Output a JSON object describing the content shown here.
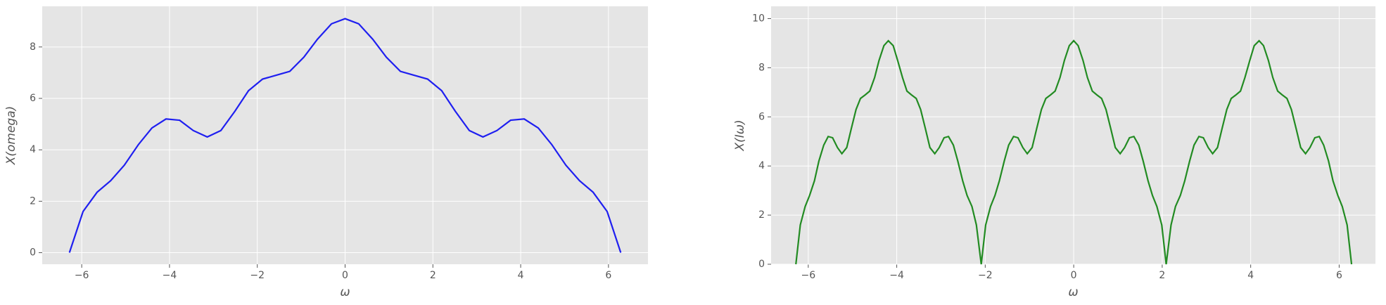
{
  "chart_data": [
    {
      "type": "line",
      "x_label": "ω",
      "y_label": "X(omega)",
      "x": [
        -6.28,
        -5.97,
        -5.65,
        -5.34,
        -5.03,
        -4.71,
        -4.4,
        -4.08,
        -3.77,
        -3.46,
        -3.14,
        -2.83,
        -2.51,
        -2.2,
        -1.88,
        -1.57,
        -1.26,
        -0.94,
        -0.63,
        -0.31,
        0,
        0.31,
        0.63,
        0.94,
        1.26,
        1.57,
        1.88,
        2.2,
        2.51,
        2.83,
        3.14,
        3.46,
        3.77,
        4.08,
        4.4,
        4.71,
        5.03,
        5.34,
        5.65,
        5.97,
        6.28
      ],
      "series": [
        {
          "color": "#1f1ff0",
          "values": [
            0,
            1.6,
            2.35,
            2.8,
            3.4,
            4.2,
            4.85,
            5.2,
            5.15,
            4.75,
            4.5,
            4.75,
            5.5,
            6.3,
            6.75,
            6.9,
            7.05,
            7.6,
            8.3,
            8.9,
            9.1,
            8.9,
            8.3,
            7.6,
            7.05,
            6.9,
            6.75,
            6.3,
            5.5,
            4.75,
            4.5,
            4.75,
            5.15,
            5.2,
            4.85,
            4.2,
            3.4,
            2.8,
            2.35,
            1.6,
            0
          ]
        }
      ],
      "xlim": [
        -6.9,
        6.9
      ],
      "ylim": [
        -0.45,
        9.58
      ],
      "xticks": [
        {
          "value": -6,
          "label": "−6"
        },
        {
          "value": -4,
          "label": "−4"
        },
        {
          "value": -2,
          "label": "−2"
        },
        0,
        2,
        4,
        6
      ],
      "yticks": [
        0,
        2,
        4,
        6,
        8
      ],
      "grid": true
    },
    {
      "type": "line",
      "x_label": "ω",
      "y_label": "X(Iω)",
      "x": [
        -6.28,
        -6.18,
        -6.07,
        -5.97,
        -5.86,
        -5.76,
        -5.65,
        -5.55,
        -5.45,
        -5.34,
        -5.24,
        -5.13,
        -5.03,
        -4.92,
        -4.82,
        -4.71,
        -4.61,
        -4.5,
        -4.4,
        -4.29,
        -4.19,
        -4.08,
        -3.98,
        -3.87,
        -3.77,
        -3.67,
        -3.56,
        -3.46,
        -3.35,
        -3.25,
        -3.14,
        -3.04,
        -2.93,
        -2.83,
        -2.72,
        -2.62,
        -2.51,
        -2.41,
        -2.3,
        -2.2,
        -2.09,
        -1.99,
        -1.88,
        -1.78,
        -1.68,
        -1.57,
        -1.47,
        -1.36,
        -1.26,
        -1.15,
        -1.05,
        -0.94,
        -0.84,
        -0.73,
        -0.63,
        -0.52,
        -0.42,
        -0.31,
        -0.21,
        -0.1,
        0,
        0.1,
        0.21,
        0.31,
        0.42,
        0.52,
        0.63,
        0.73,
        0.84,
        0.94,
        1.05,
        1.15,
        1.26,
        1.36,
        1.47,
        1.57,
        1.68,
        1.78,
        1.88,
        1.99,
        2.09,
        2.2,
        2.3,
        2.41,
        2.51,
        2.62,
        2.72,
        2.83,
        2.93,
        3.04,
        3.14,
        3.25,
        3.35,
        3.46,
        3.56,
        3.67,
        3.77,
        3.87,
        3.98,
        4.08,
        4.19,
        4.29,
        4.4,
        4.5,
        4.61,
        4.71,
        4.82,
        4.92,
        5.03,
        5.13,
        5.24,
        5.34,
        5.45,
        5.55,
        5.65,
        5.76,
        5.86,
        5.97,
        6.07,
        6.18,
        6.28
      ],
      "series": [
        {
          "color": "#228b22",
          "values": [
            0,
            1.6,
            2.35,
            2.8,
            3.4,
            4.2,
            4.85,
            5.2,
            5.15,
            4.75,
            4.5,
            4.75,
            5.5,
            6.3,
            6.75,
            6.9,
            7.05,
            7.6,
            8.3,
            8.9,
            9.1,
            8.9,
            8.3,
            7.6,
            7.05,
            6.9,
            6.75,
            6.3,
            5.5,
            4.75,
            4.5,
            4.75,
            5.15,
            5.2,
            4.85,
            4.2,
            3.4,
            2.8,
            2.35,
            1.6,
            0,
            1.6,
            2.35,
            2.8,
            3.4,
            4.2,
            4.85,
            5.2,
            5.15,
            4.75,
            4.5,
            4.75,
            5.5,
            6.3,
            6.75,
            6.9,
            7.05,
            7.6,
            8.3,
            8.9,
            9.1,
            8.9,
            8.3,
            7.6,
            7.05,
            6.9,
            6.75,
            6.3,
            5.5,
            4.75,
            4.5,
            4.75,
            5.15,
            5.2,
            4.85,
            4.2,
            3.4,
            2.8,
            2.35,
            1.6,
            0,
            1.6,
            2.35,
            2.8,
            3.4,
            4.2,
            4.85,
            5.2,
            5.15,
            4.75,
            4.5,
            4.75,
            5.5,
            6.3,
            6.75,
            6.9,
            7.05,
            7.6,
            8.3,
            8.9,
            9.1,
            8.9,
            8.3,
            7.6,
            7.05,
            6.9,
            6.75,
            6.3,
            5.5,
            4.75,
            4.5,
            4.75,
            5.15,
            5.2,
            4.85,
            4.2,
            3.4,
            2.8,
            2.35,
            1.6,
            0
          ]
        }
      ],
      "xlim": [
        -6.84,
        6.82
      ],
      "ylim": [
        0,
        10.5
      ],
      "xticks": [
        {
          "value": -6,
          "label": "−6"
        },
        {
          "value": -4,
          "label": "−4"
        },
        {
          "value": -2,
          "label": "−2"
        },
        0,
        2,
        4,
        6
      ],
      "yticks": [
        0,
        2,
        4,
        6,
        8,
        10
      ],
      "grid": true
    }
  ]
}
